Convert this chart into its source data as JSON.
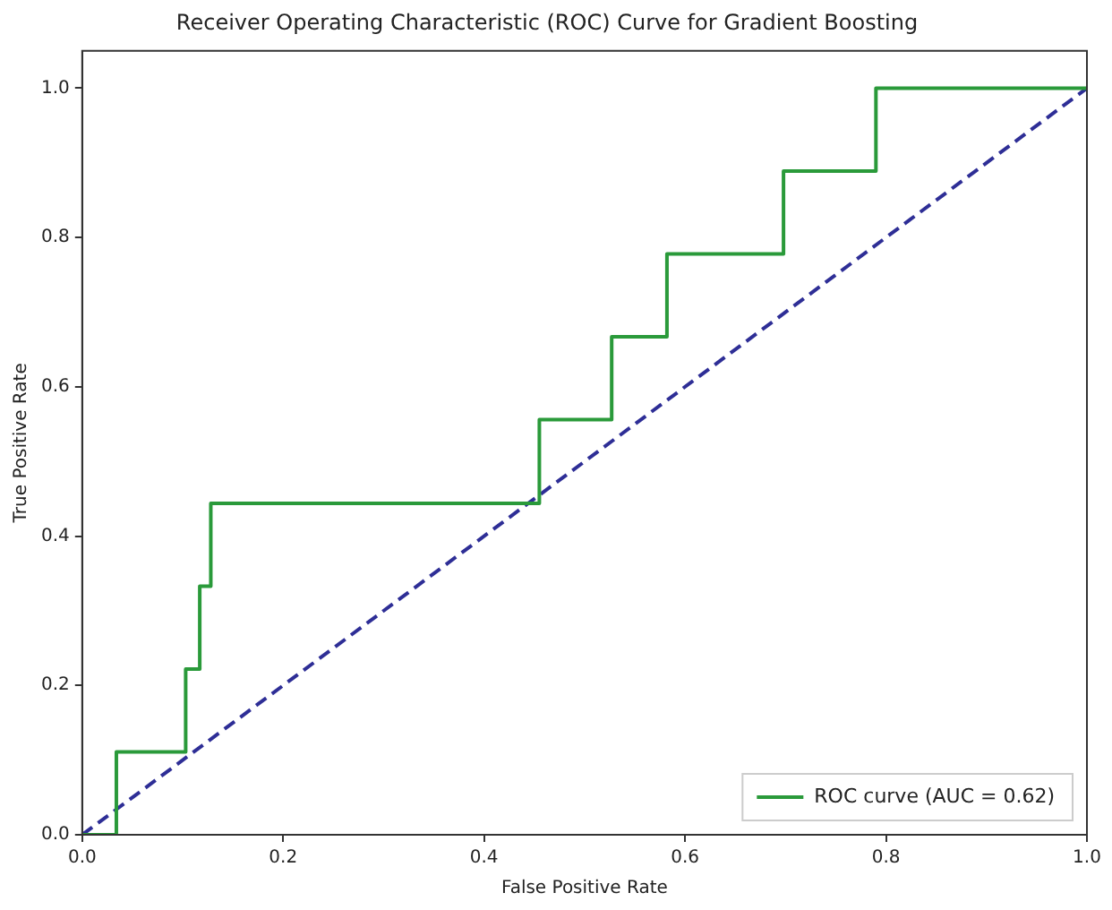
{
  "chart_data": {
    "type": "step",
    "title": "Receiver Operating Characteristic (ROC) Curve for Gradient Boosting",
    "xlabel": "False Positive Rate",
    "ylabel": "True Positive Rate",
    "series": [
      {
        "name": "ROC curve (AUC = 0.62)",
        "type": "step",
        "color": "#2a9a3a",
        "line_style": "solid",
        "x": [
          0,
          0.034,
          0.103,
          0.117,
          0.128,
          0.455,
          0.527,
          0.582,
          0.698,
          0.79,
          1
        ],
        "values": [
          0,
          0.111,
          0.222,
          0.333,
          0.444,
          0.556,
          0.667,
          0.778,
          0.889,
          1,
          1
        ]
      },
      {
        "type": "line",
        "color": "#2e2e96",
        "line_style": "dashed",
        "x": [
          0,
          1
        ],
        "values": [
          0,
          1
        ]
      }
    ],
    "xlim": [
      0,
      1
    ],
    "ylim": [
      0,
      1.05
    ],
    "xticks": [
      {
        "value": 0,
        "label": "0.0"
      },
      {
        "value": 0.2,
        "label": "0.2"
      },
      {
        "value": 0.4,
        "label": "0.4"
      },
      {
        "value": 0.6,
        "label": "0.6"
      },
      {
        "value": 0.8,
        "label": "0.8"
      },
      {
        "value": 1,
        "label": "1.0"
      }
    ],
    "yticks": [
      {
        "value": 0,
        "label": "0.0"
      },
      {
        "value": 0.2,
        "label": "0.2"
      },
      {
        "value": 0.4,
        "label": "0.4"
      },
      {
        "value": 0.6,
        "label": "0.6"
      },
      {
        "value": 0.8,
        "label": "0.8"
      },
      {
        "value": 1,
        "label": "1.0"
      }
    ],
    "grid": false,
    "legend": "bottom right",
    "marker": "none"
  }
}
